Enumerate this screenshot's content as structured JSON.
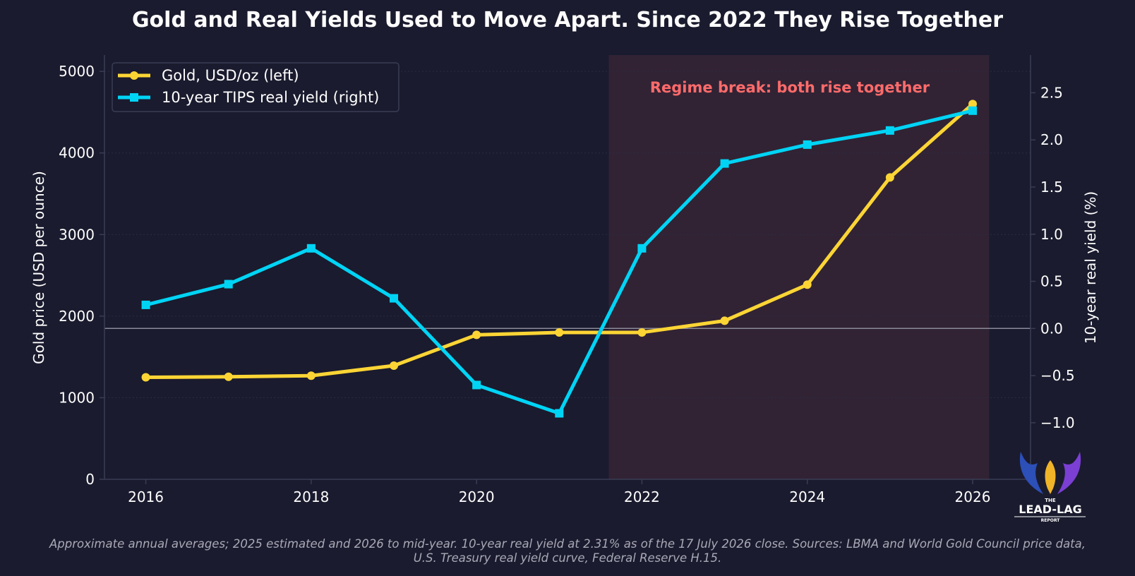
{
  "chart_data": {
    "type": "line",
    "title": "Gold and Real Yields Used to Move Apart. Since 2022 They Rise Together",
    "x": [
      2016,
      2017,
      2018,
      2019,
      2020,
      2021,
      2022,
      2023,
      2024,
      2025,
      2026
    ],
    "x_ticks": [
      "2016",
      "2018",
      "2020",
      "2022",
      "2024",
      "2026"
    ],
    "xlim": [
      2015.5,
      2026.7
    ],
    "series": [
      {
        "name": "Gold, USD/oz (left)",
        "axis": "left",
        "color": "#fcd535",
        "marker": "circle",
        "values": [
          1250,
          1257,
          1270,
          1393,
          1770,
          1800,
          1800,
          1943,
          2386,
          3700,
          4600
        ]
      },
      {
        "name": "10-year TIPS real yield (right)",
        "axis": "right",
        "color": "#00d4f5",
        "marker": "square",
        "values": [
          0.25,
          0.47,
          0.85,
          0.32,
          -0.6,
          -0.9,
          0.85,
          1.75,
          1.95,
          2.1,
          2.31
        ]
      }
    ],
    "y_left": {
      "label": "Gold price (USD per ounce)",
      "ylim": [
        0,
        5200
      ],
      "ticks": [
        0,
        1000,
        2000,
        3000,
        4000,
        5000
      ],
      "tick_labels": [
        "0",
        "1000",
        "2000",
        "3000",
        "4000",
        "5000"
      ]
    },
    "y_right": {
      "label": "10-year real yield (%)",
      "ylim": [
        -1.6,
        2.9
      ],
      "ticks": [
        -1.0,
        -0.5,
        0.0,
        0.5,
        1.0,
        1.5,
        2.0,
        2.5
      ],
      "tick_labels": [
        "−1.0",
        "−0.5",
        "0.0",
        "0.5",
        "1.0",
        "1.5",
        "2.0",
        "2.5"
      ],
      "reference_line": 0.0
    },
    "shaded_region": {
      "x_start": 2021.6,
      "x_end": 2026.2,
      "color": "#ff6b6b"
    },
    "annotation": "Regime break: both rise together",
    "legend_position": "top-left",
    "grid": true
  },
  "caption": {
    "line1": "Approximate annual averages; 2025 estimated and 2026 to mid-year. 10-year real yield at 2.31% as of the 17 July 2026 close. Sources: LBMA and World Gold Council price data,",
    "line2": "U.S. Treasury real yield curve, Federal Reserve H.15."
  },
  "logo": {
    "line1": "THE",
    "line2": "LEAD-LAG",
    "line3": "REPORT"
  },
  "colors": {
    "background": "#1a1b2e",
    "gold": "#fcd535",
    "yield": "#00d4f5",
    "annotation": "#ff6b6b"
  }
}
